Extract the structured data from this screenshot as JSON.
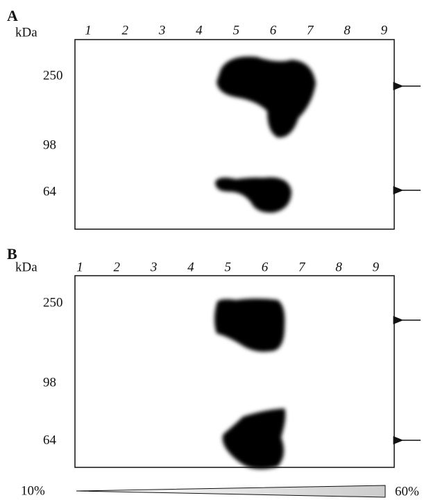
{
  "panels": [
    {
      "label": "A",
      "unit": "kDa",
      "lanes": [
        "1",
        "2",
        "3",
        "4",
        "5",
        "6",
        "7",
        "8",
        "9"
      ],
      "markers": [
        "250",
        "98",
        "64"
      ]
    },
    {
      "label": "B",
      "unit": "kDa",
      "lanes": [
        "1",
        "2",
        "3",
        "4",
        "5",
        "6",
        "7",
        "8",
        "9"
      ],
      "markers": [
        "250",
        "98",
        "64"
      ]
    }
  ],
  "gradient": {
    "start": "10%",
    "end": "60%"
  }
}
